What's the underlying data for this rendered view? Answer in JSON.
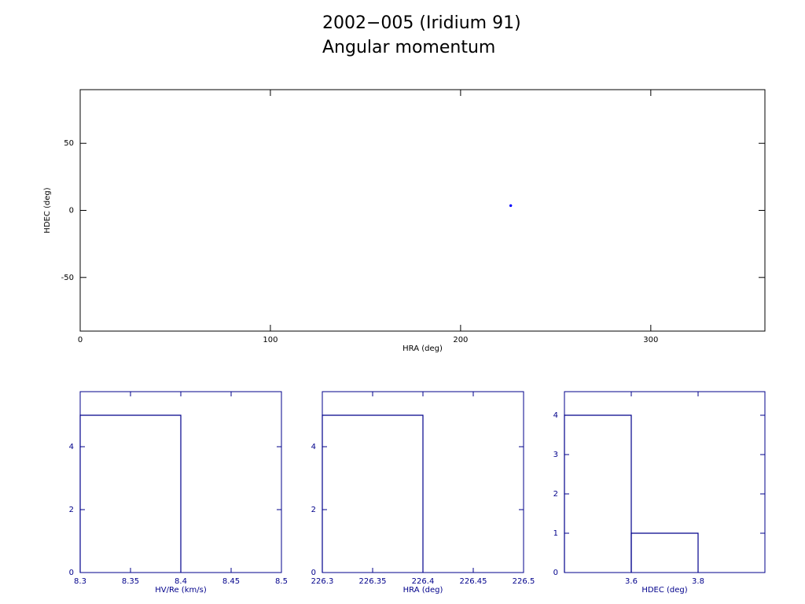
{
  "chart_data": [
    {
      "type": "scatter",
      "title": "2002−005 (Iridium 91)",
      "subtitle": "Angular momentum",
      "x_label": "HRA (deg)",
      "y_label": "HDEC (deg)",
      "x": [
        226.35,
        226.35,
        226.36,
        226.37,
        226.38
      ],
      "values": [
        3.45,
        3.5,
        3.55,
        3.58,
        3.7
      ],
      "color": "#0000ff",
      "axis_color": "#000000",
      "xlim": [
        0,
        360
      ],
      "xticks": [
        0,
        100,
        200,
        300
      ],
      "ylim": [
        -90,
        90
      ],
      "yticks": [
        -50,
        0,
        50
      ]
    },
    {
      "type": "histogram",
      "x_label": "HV/Re (km/s)",
      "bins": [
        8.3,
        8.4
      ],
      "values": [
        5
      ],
      "color": "#00008b",
      "axis_color": "#00008b",
      "xlim": [
        8.3,
        8.5
      ],
      "xticks": [
        8.3,
        8.35,
        8.4,
        8.45,
        8.5
      ],
      "ylim": [
        0,
        5.75
      ],
      "yticks": [
        0,
        2,
        4
      ]
    },
    {
      "type": "histogram",
      "x_label": "HRA (deg)",
      "bins": [
        226.3,
        226.4
      ],
      "values": [
        5
      ],
      "color": "#00008b",
      "axis_color": "#00008b",
      "xlim": [
        226.3,
        226.5
      ],
      "xticks": [
        226.3,
        226.35,
        226.4,
        226.45,
        226.5
      ],
      "ylim": [
        0,
        5.75
      ],
      "yticks": [
        0,
        2,
        4
      ]
    },
    {
      "type": "histogram",
      "x_label": "HDEC (deg)",
      "bins": [
        3.4,
        3.6,
        3.8
      ],
      "values": [
        4,
        1
      ],
      "color": "#00008b",
      "axis_color": "#00008b",
      "xlim": [
        3.4,
        4.0
      ],
      "xticks": [
        3.6,
        3.8
      ],
      "ylim": [
        0,
        4.6
      ],
      "yticks": [
        0,
        1,
        2,
        3,
        4
      ]
    }
  ]
}
